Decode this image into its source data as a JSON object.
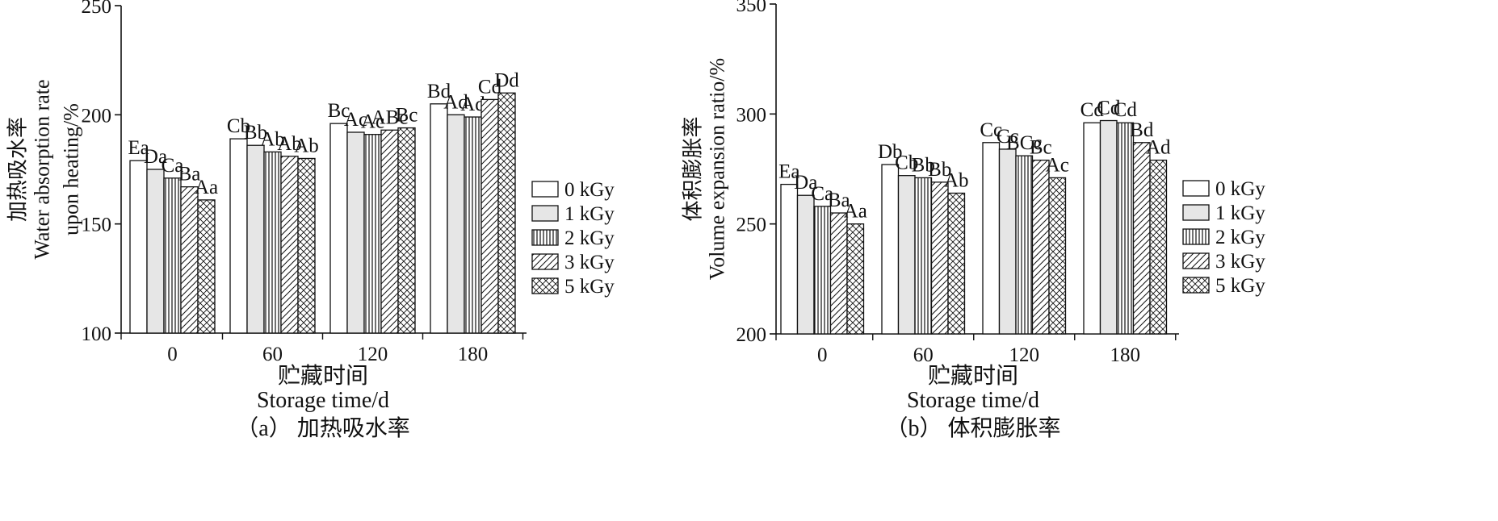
{
  "chart_data": [
    {
      "type": "bar",
      "categories": [
        "0",
        "60",
        "120",
        "180"
      ],
      "xlabel_cn": "贮藏时间",
      "xlabel": "Storage time/d",
      "ylabel_cn": "加热吸水率",
      "ylabel_line1": "Water absorption rate",
      "ylabel_line2": "upon heating/%",
      "ylim": [
        100,
        250
      ],
      "yticks": [
        "100",
        "150",
        "200",
        "250"
      ],
      "caption": "（a） 加热吸水率",
      "series": [
        {
          "name": "0 kGy",
          "values": [
            179,
            189,
            196,
            205
          ],
          "labels": [
            "Ea",
            "Cb",
            "Bc",
            "Bd"
          ]
        },
        {
          "name": "1 kGy",
          "values": [
            175,
            186,
            192,
            200
          ],
          "labels": [
            "Da",
            "Bb",
            "Ac",
            "Ad"
          ]
        },
        {
          "name": "2 kGy",
          "values": [
            171,
            183,
            191,
            199
          ],
          "labels": [
            "Ca",
            "Ab",
            "Ac",
            "Ad"
          ]
        },
        {
          "name": "3 kGy",
          "values": [
            167,
            181,
            193,
            207
          ],
          "labels": [
            "Ba",
            "Ab",
            "ABc",
            "Cd"
          ]
        },
        {
          "name": "5 kGy",
          "values": [
            161,
            180,
            194,
            210
          ],
          "labels": [
            "Aa",
            "Ab",
            "Bc",
            "Dd"
          ]
        }
      ]
    },
    {
      "type": "bar",
      "categories": [
        "0",
        "60",
        "120",
        "180"
      ],
      "xlabel_cn": "贮藏时间",
      "xlabel": "Storage time/d",
      "ylabel_cn": "体积膨胀率",
      "ylabel_line1": "Volume expansion ratio/%",
      "ylim": [
        200,
        350
      ],
      "yticks": [
        "200",
        "250",
        "300",
        "350"
      ],
      "caption": "（b） 体积膨胀率",
      "series": [
        {
          "name": "0 kGy",
          "values": [
            268,
            277,
            287,
            296
          ],
          "labels": [
            "Ea",
            "Db",
            "Cc",
            "Cd"
          ]
        },
        {
          "name": "1 kGy",
          "values": [
            263,
            272,
            284,
            297
          ],
          "labels": [
            "Da",
            "Cb",
            "Cc",
            "Cd"
          ]
        },
        {
          "name": "2 kGy",
          "values": [
            258,
            271,
            281,
            296
          ],
          "labels": [
            "Ca",
            "Bb",
            "BCc",
            "Cd"
          ]
        },
        {
          "name": "3 kGy",
          "values": [
            255,
            269,
            279,
            287
          ],
          "labels": [
            "Ba",
            "Bb",
            "Bc",
            "Bd"
          ]
        },
        {
          "name": "5 kGy",
          "values": [
            250,
            264,
            271,
            279
          ],
          "labels": [
            "Aa",
            "Ab",
            "Ac",
            "Ad"
          ]
        }
      ]
    }
  ]
}
